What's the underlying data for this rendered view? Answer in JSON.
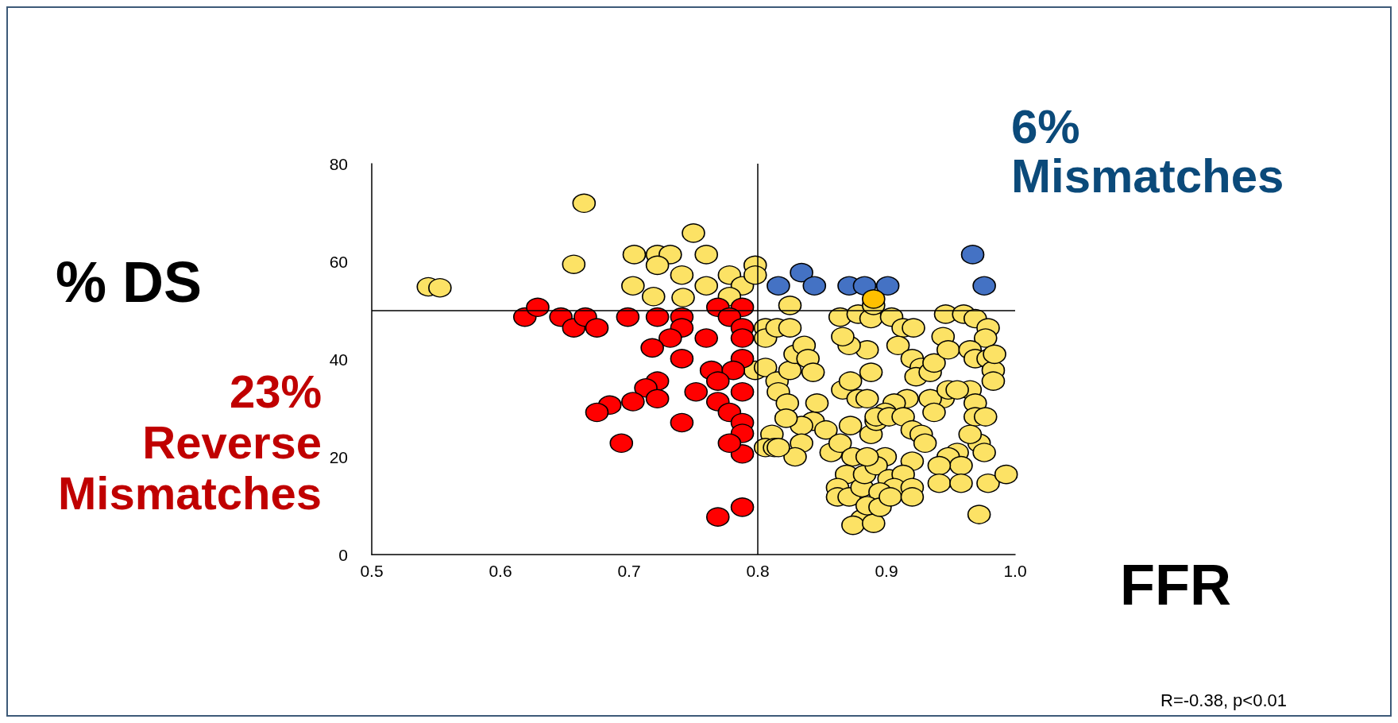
{
  "chart_data": {
    "type": "scatter",
    "xlabel": "FFR",
    "ylabel": "% DS",
    "marker": "circle",
    "xlim": [
      0.5,
      1.0
    ],
    "xticks": [
      0.5,
      0.6,
      0.7,
      0.8,
      0.9,
      {
        "value": 1.0,
        "label": "1.0"
      }
    ],
    "ylim": [
      0,
      80
    ],
    "yticks": [
      0,
      20,
      40,
      60,
      80
    ],
    "ref_lines": [
      {
        "axis": "y",
        "value": 50,
        "color": "#000000"
      },
      {
        "axis": "x",
        "value": 0.8,
        "color": "#000000"
      }
    ],
    "annotations": [
      "6%\nMismatches",
      "23%\nReverse\nMismatches",
      "R=-0.38, p<0.01"
    ],
    "series": [
      {
        "color": "#fce265",
        "x": [
          0.544,
          0.553,
          0.665,
          0.657,
          0.704,
          0.722,
          0.732,
          0.722,
          0.75,
          0.76,
          0.741,
          0.703,
          0.719,
          0.742,
          0.76,
          0.778,
          0.788,
          0.778,
          0.798,
          0.798,
          0.806,
          0.806,
          0.815,
          0.825,
          0.825,
          0.798,
          0.806,
          0.815,
          0.816,
          0.823,
          0.825,
          0.829,
          0.836,
          0.839,
          0.843,
          0.846,
          0.843,
          0.834,
          0.822,
          0.811,
          0.806,
          0.813,
          0.834,
          0.853,
          0.857,
          0.864,
          0.874,
          0.869,
          0.862,
          0.862,
          0.871,
          0.881,
          0.883,
          0.888,
          0.892,
          0.872,
          0.866,
          0.872,
          0.878,
          0.885,
          0.888,
          0.885,
          0.871,
          0.866,
          0.864,
          0.878,
          0.888,
          0.89,
          0.904,
          0.913,
          0.921,
          0.909,
          0.92,
          0.927,
          0.923,
          0.934,
          0.937,
          0.946,
          0.96,
          0.969,
          0.979,
          0.977,
          0.944,
          0.948,
          0.965,
          0.969,
          0.979,
          0.983,
          0.983,
          0.965,
          0.944,
          0.934,
          0.916,
          0.906,
          0.899,
          0.892,
          0.902,
          0.913,
          0.92,
          0.927,
          0.93,
          0.937,
          0.948,
          0.955,
          0.969,
          0.969,
          0.977,
          0.955,
          0.972,
          0.965,
          0.948,
          0.958,
          0.941,
          0.92,
          0.899,
          0.892,
          0.902,
          0.913,
          0.906,
          0.895,
          0.92,
          0.941,
          0.958,
          0.976,
          0.979,
          0.993,
          0.972,
          0.881,
          0.874,
          0.89,
          0.885,
          0.895,
          0.903,
          0.92,
          0.885,
          0.829,
          0.816,
          0.984
        ],
        "values": [
          54.8,
          54.6,
          71.9,
          59.4,
          61.4,
          61.4,
          61.4,
          59.2,
          65.8,
          61.4,
          57.2,
          55,
          52.8,
          52.6,
          55,
          57.2,
          55,
          52.8,
          59.2,
          57.2,
          46.4,
          44.3,
          46.4,
          51,
          46.4,
          37.7,
          38.3,
          35.5,
          33.3,
          31,
          37.7,
          41,
          42.8,
          40.1,
          37.3,
          31,
          27.3,
          26.4,
          27.9,
          24.6,
          21.9,
          21.9,
          22.8,
          25.5,
          20.9,
          22.8,
          20,
          16.4,
          13.7,
          11.8,
          11.8,
          13.7,
          16.4,
          24.6,
          27.3,
          26.4,
          33.7,
          35.5,
          31.9,
          31.9,
          37.3,
          41.9,
          42.8,
          44.6,
          48.6,
          49.2,
          48.3,
          51,
          48.6,
          46.4,
          46.4,
          42.8,
          40.1,
          38.3,
          36.4,
          37.3,
          39.2,
          49.2,
          49.2,
          48.3,
          46.4,
          44.3,
          44.6,
          41.9,
          41.9,
          40.1,
          40.1,
          37.7,
          35.5,
          33.7,
          31.9,
          31.9,
          31.9,
          31,
          29.1,
          28.2,
          28.2,
          28.2,
          25.5,
          24.6,
          22.8,
          29.1,
          33.7,
          33.7,
          31,
          28.2,
          28.2,
          20.9,
          22.8,
          24.6,
          20,
          18.2,
          18.2,
          19.1,
          20,
          18.2,
          15.5,
          16.4,
          13.7,
          12.8,
          13.7,
          14.6,
          14.6,
          20.9,
          14.6,
          16.4,
          8.2,
          7.3,
          6,
          6.4,
          10,
          9.7,
          11.8,
          11.8,
          20,
          20,
          21.9,
          41
        ]
      },
      {
        "color": "#ff0000",
        "x": [
          0.619,
          0.629,
          0.647,
          0.657,
          0.666,
          0.675,
          0.699,
          0.722,
          0.741,
          0.769,
          0.788,
          0.778,
          0.788,
          0.741,
          0.732,
          0.718,
          0.76,
          0.788,
          0.788,
          0.741,
          0.764,
          0.781,
          0.769,
          0.722,
          0.713,
          0.722,
          0.703,
          0.685,
          0.675,
          0.752,
          0.769,
          0.788,
          0.778,
          0.788,
          0.788,
          0.788,
          0.778,
          0.694,
          0.741,
          0.769,
          0.788
        ],
        "values": [
          48.6,
          50.6,
          48.6,
          46.4,
          48.6,
          46.4,
          48.6,
          48.6,
          48.6,
          50.6,
          50.6,
          48.6,
          46.4,
          46.4,
          44.3,
          42.3,
          44.3,
          44.3,
          40.1,
          40.1,
          37.7,
          37.7,
          35.5,
          35.5,
          34.1,
          31.9,
          31.3,
          30.6,
          29.1,
          33.3,
          31.3,
          33.3,
          29.1,
          27,
          24.8,
          20.6,
          22.8,
          22.8,
          27,
          7.7,
          9.7
        ]
      },
      {
        "color": "#4472c4",
        "x": [
          0.816,
          0.834,
          0.844,
          0.871,
          0.883,
          0.901,
          0.967,
          0.976
        ],
        "values": [
          55,
          57.7,
          55,
          55,
          55,
          55,
          61.4,
          55
        ]
      },
      {
        "color": "#ffc000",
        "x": [
          0.89
        ],
        "values": [
          52.3
        ]
      }
    ]
  }
}
